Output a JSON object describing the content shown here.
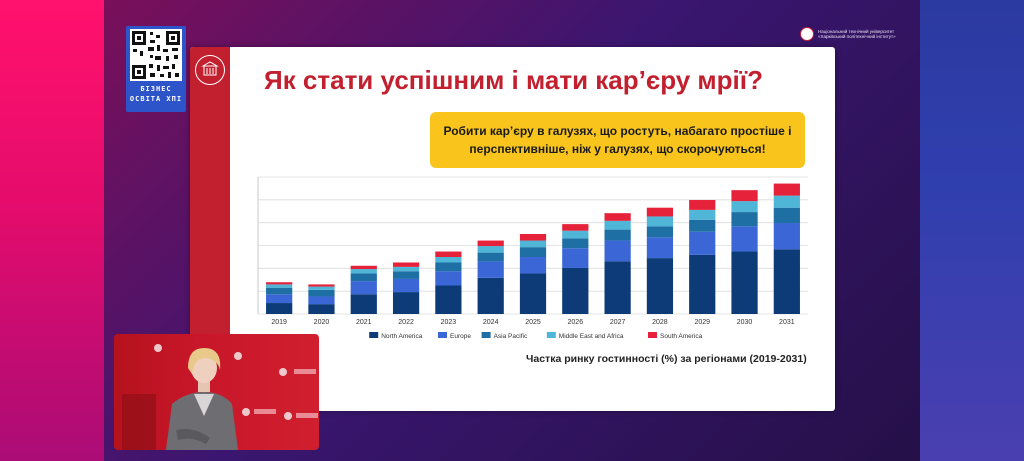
{
  "qr_badge": {
    "line1": "БІЗНЕС",
    "line2": "ОСВІТА ХПІ"
  },
  "university_header": {
    "line1": "Національний технічний університет",
    "line2": "«Харківський політехнічний інститут»"
  },
  "slide": {
    "title": "Як стати успішним і мати кар’єру мрії?",
    "callout_line1": "Робити кар’єру в галузях, що ростуть, набагато простіше і",
    "callout_line2": "перспективніше, ніж у галузях, що скорочуються!",
    "caption": "Частка ринку гостинності (%) за регіонами (2019-2031)"
  },
  "colors": {
    "accent_red": "#c2202f",
    "callout_yellow": "#f9c51d",
    "frame_pink": "#e8155f",
    "frame_blue": "#2b3aa0"
  },
  "chart_data": {
    "type": "bar",
    "stacked": true,
    "categories": [
      "2019",
      "2020",
      "2021",
      "2022",
      "2023",
      "2024",
      "2025",
      "2026",
      "2027",
      "2028",
      "2029",
      "2030",
      "2031"
    ],
    "series": [
      {
        "name": "North America",
        "color": "#0d3b78",
        "values": [
          10,
          9,
          18,
          20,
          26,
          33,
          37,
          42,
          48,
          51,
          54,
          57,
          59
        ]
      },
      {
        "name": "Europe",
        "color": "#3a66d6",
        "values": [
          8,
          7,
          12,
          12,
          13,
          15,
          15,
          18,
          19,
          19,
          21,
          23,
          24
        ]
      },
      {
        "name": "Asia Pacific",
        "color": "#1e6fa4",
        "values": [
          6,
          6,
          7,
          7,
          8,
          8,
          9,
          9,
          10,
          10,
          11,
          13,
          14
        ]
      },
      {
        "name": "Middle East and Africa",
        "color": "#4fb6d8",
        "values": [
          3,
          3,
          4,
          4,
          5,
          6,
          6,
          7,
          8,
          9,
          9,
          10,
          11
        ]
      },
      {
        "name": "South America",
        "color": "#e5223a",
        "values": [
          2,
          2,
          3,
          4,
          5,
          5,
          6,
          6,
          7,
          8,
          9,
          10,
          11
        ]
      }
    ],
    "ylim": [
      0,
      125
    ],
    "grid": true,
    "legend": "bottom"
  },
  "icons": {
    "qr": "qr-code-icon",
    "university": "university-logo-icon",
    "band_logo": "university-emblem-icon"
  }
}
